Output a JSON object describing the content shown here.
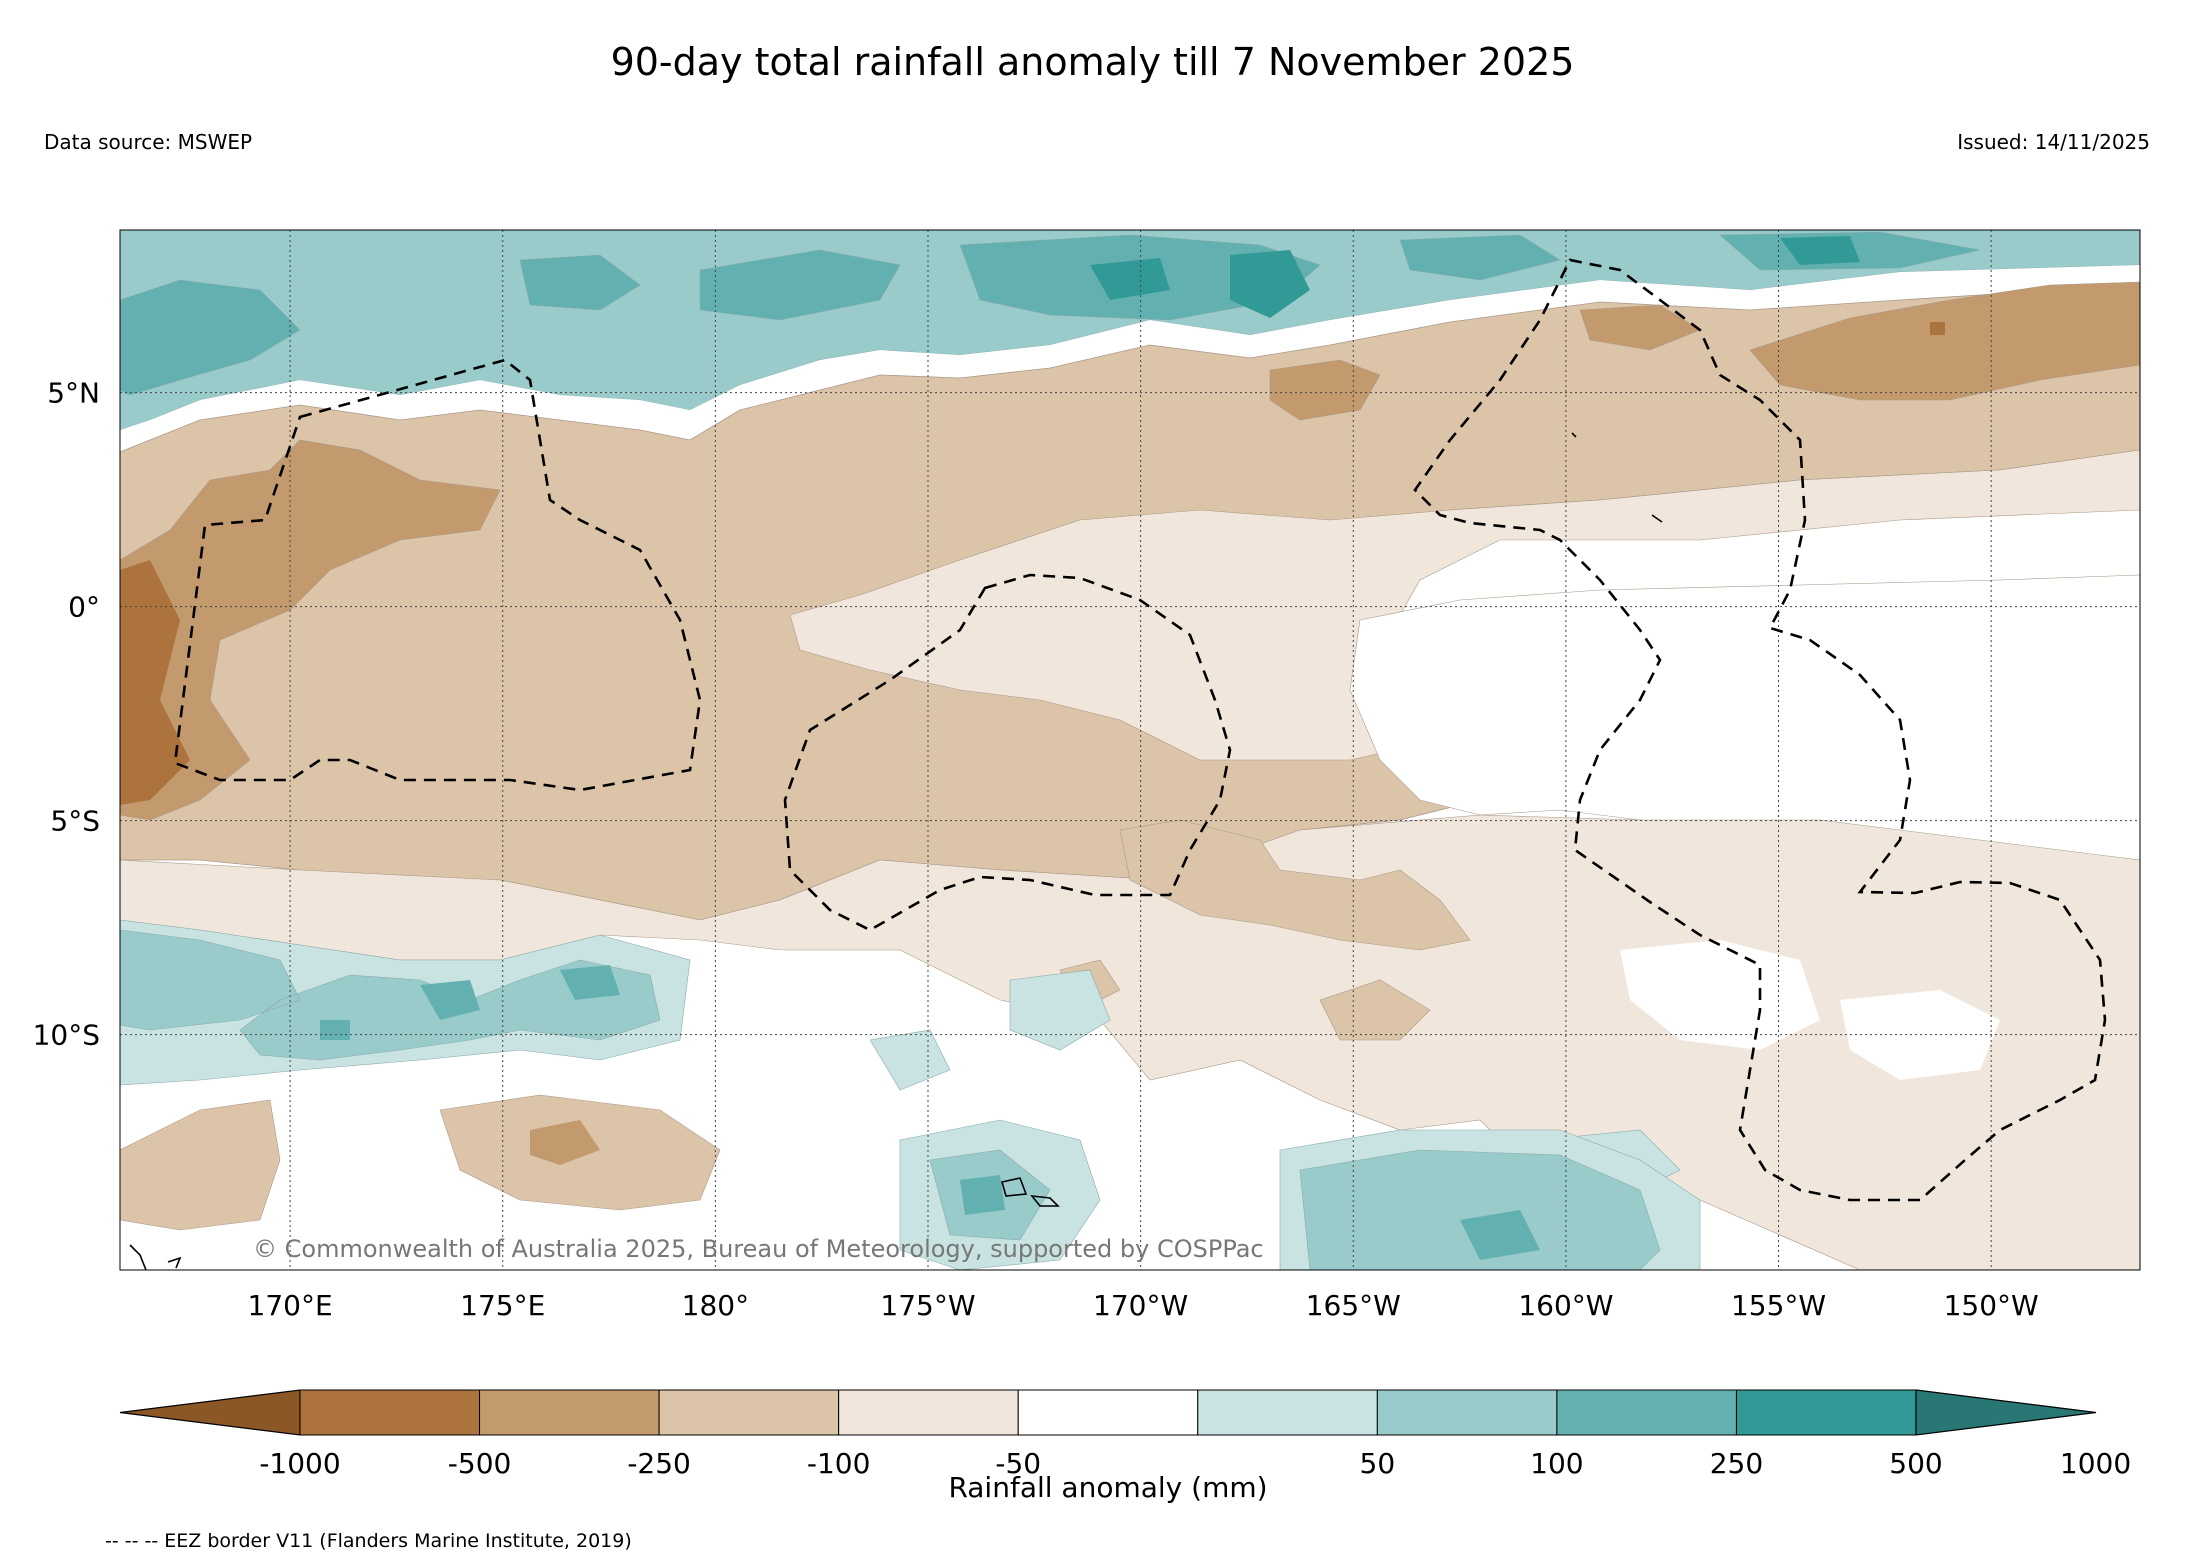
{
  "header": {
    "title": "90-day total rainfall anomaly till 7 November 2025",
    "data_source": "Data source: MSWEP",
    "issued": "Issued: 14/11/2025"
  },
  "map": {
    "lon_range": [
      166,
      213.5
    ],
    "lat_range": [
      -15.5,
      8.8
    ],
    "lat_ticks": [
      {
        "lat": 5,
        "label": "5°N"
      },
      {
        "lat": 0,
        "label": "0°"
      },
      {
        "lat": -5,
        "label": "5°S"
      },
      {
        "lat": -10,
        "label": "10°S"
      }
    ],
    "lon_ticks": [
      {
        "lon": 170,
        "label": "170°E"
      },
      {
        "lon": 175,
        "label": "175°E"
      },
      {
        "lon": 180,
        "label": "180°"
      },
      {
        "lon": 185,
        "label": "175°W"
      },
      {
        "lon": 190,
        "label": "170°W"
      },
      {
        "lon": 195,
        "label": "165°W"
      },
      {
        "lon": 200,
        "label": "160°W"
      },
      {
        "lon": 205,
        "label": "155°W"
      },
      {
        "lon": 210,
        "label": "150°W"
      }
    ],
    "credit": "© Commonwealth of Australia 2025, Bureau of Meteorology, supported by COSPPac"
  },
  "colorbar": {
    "label": "Rainfall anomaly (mm)",
    "ticks": [
      "-1000",
      "-500",
      "-250",
      "-100",
      "-50",
      "50",
      "100",
      "250",
      "500",
      "1000"
    ],
    "colors": [
      "#8c5726",
      "#ac733d",
      "#c29a6e",
      "#dcc4a9",
      "#f1e6dc",
      "#ffffff",
      "#c9e3e2",
      "#99cbcb",
      "#63b0b0",
      "#319996",
      "#287775"
    ]
  },
  "footnote": "-- -- -- EEZ border V11 (Flanders Marine Institute, 2019)",
  "colors": {
    "brown_dark": "#c29a6e",
    "brown": "#dcc4a9",
    "brown_light": "#f1e6dc",
    "teal_light": "#c9e3e2",
    "teal": "#99cbcb",
    "teal_mid": "#63b0b0",
    "teal_dark": "#319996"
  }
}
